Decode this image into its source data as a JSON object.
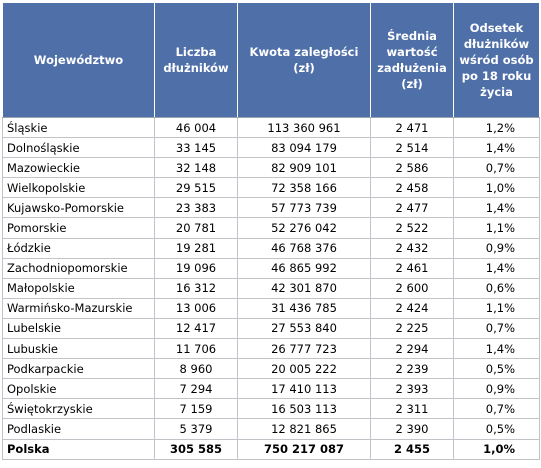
{
  "headers": {
    "region": "Województwo",
    "debtors": "Liczba dłużników",
    "amount": "Kwota zaległości (zł)",
    "average": "Średnia wartość zadłużenia (zł)",
    "share": "Odsetek dłużników wśród osób po 18 roku życia"
  },
  "rows": [
    {
      "region": "Śląskie",
      "debtors": "46 004",
      "amount": "113 360 961",
      "average": "2 471",
      "share": "1,2%"
    },
    {
      "region": "Dolnośląskie",
      "debtors": "33 145",
      "amount": "83 094 179",
      "average": "2 514",
      "share": "1,4%"
    },
    {
      "region": "Mazowieckie",
      "debtors": "32 148",
      "amount": "82 909 101",
      "average": "2 586",
      "share": "0,7%"
    },
    {
      "region": "Wielkopolskie",
      "debtors": "29 515",
      "amount": "72 358 166",
      "average": "2 458",
      "share": "1,0%"
    },
    {
      "region": "Kujawsko-Pomorskie",
      "debtors": "23 383",
      "amount": "57 773 739",
      "average": "2 477",
      "share": "1,4%"
    },
    {
      "region": "Pomorskie",
      "debtors": "20 781",
      "amount": "52 276 042",
      "average": "2 522",
      "share": "1,1%"
    },
    {
      "region": "Łódzkie",
      "debtors": "19 281",
      "amount": "46 768 376",
      "average": "2 432",
      "share": "0,9%"
    },
    {
      "region": "Zachodniopomorskie",
      "debtors": "19 096",
      "amount": "46 865 992",
      "average": "2 461",
      "share": "1,4%"
    },
    {
      "region": "Małopolskie",
      "debtors": "16 312",
      "amount": "42 301 870",
      "average": "2 600",
      "share": "0,6%"
    },
    {
      "region": "Warmińsko-Mazurskie",
      "debtors": "13 006",
      "amount": "31 436 785",
      "average": "2 424",
      "share": "1,1%"
    },
    {
      "region": "Lubelskie",
      "debtors": "12 417",
      "amount": "27 553 840",
      "average": "2 225",
      "share": "0,7%"
    },
    {
      "region": "Lubuskie",
      "debtors": "11 706",
      "amount": "26 777 723",
      "average": "2 294",
      "share": "1,4%"
    },
    {
      "region": "Podkarpackie",
      "debtors": "8 960",
      "amount": "20 005 222",
      "average": "2 239",
      "share": "0,5%"
    },
    {
      "region": "Opolskie",
      "debtors": "7 294",
      "amount": "17 410 113",
      "average": "2 393",
      "share": "0,9%"
    },
    {
      "region": "Świętokrzyskie",
      "debtors": "7 159",
      "amount": "16 503 113",
      "average": "2 311",
      "share": "0,7%"
    },
    {
      "region": "Podlaskie",
      "debtors": "5 379",
      "amount": "12 821 865",
      "average": "2 390",
      "share": "0,5%"
    }
  ],
  "total": {
    "region": "Polska",
    "debtors": "305 585",
    "amount": "750 217 087",
    "average": "2 455",
    "share": "1,0%"
  },
  "colors": {
    "header_bg": "#4f6fa8",
    "header_text": "#ffffff",
    "grid": "#c0c4c8"
  }
}
